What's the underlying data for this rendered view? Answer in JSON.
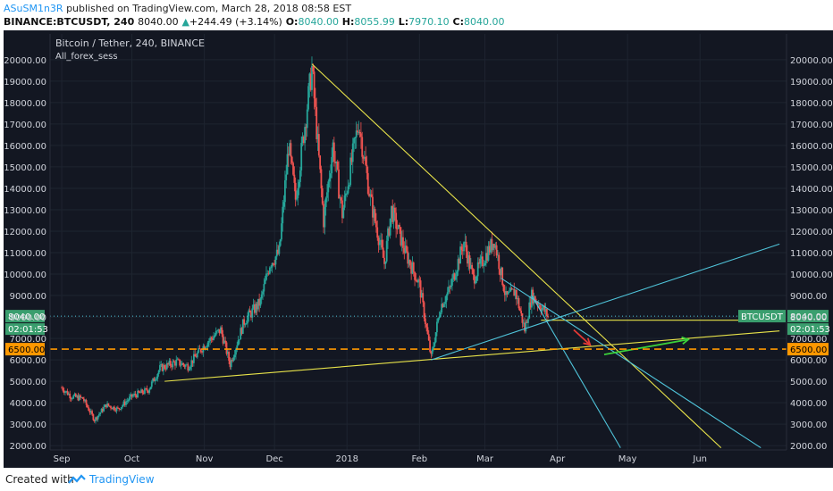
{
  "header": {
    "author": "ASuSM1n3R",
    "published_text": " published on TradingView.com, March 28, 2018 08:58 EST",
    "symbol": "BINANCE:BTCUSDT, 240",
    "last": "8040.00",
    "change_arrow": "▲",
    "change": "+244.49 (+3.14%)",
    "o_label": "O:",
    "o": "8040.00",
    "h_label": "H:",
    "h": "8055.99",
    "l_label": "L:",
    "l": "7970.10",
    "c_label": "C:",
    "c": "8040.00"
  },
  "legend": {
    "title": "Bitcoin / Tether, 240, BINANCE",
    "indicator": "All_forex_sess"
  },
  "chart_data": {
    "type": "candlestick",
    "x_categories": [
      "Sep",
      "Oct",
      "Nov",
      "Dec",
      "2018",
      "Feb",
      "Mar",
      "Apr",
      "May",
      "Jun"
    ],
    "ylim": [
      1800,
      21200
    ],
    "y_ticks": [
      2000,
      3000,
      4000,
      5000,
      6000,
      7000,
      8000,
      9000,
      10000,
      11000,
      12000,
      13000,
      14000,
      15000,
      16000,
      17000,
      18000,
      19000,
      20000
    ],
    "y_tick_labels": [
      "2000.00",
      "3000.00",
      "4000.00",
      "5000.00",
      "6000.00",
      "7000.00",
      "8000.00",
      "9000.00",
      "10000.00",
      "11000.00",
      "12000.00",
      "13000.00",
      "14000.00",
      "15000.00",
      "16000.00",
      "17000.00",
      "18000.00",
      "19000.00",
      "20000.00"
    ],
    "price_path": [
      [
        "2017-09-01",
        4700
      ],
      [
        "2017-09-05",
        4300
      ],
      [
        "2017-09-10",
        4200
      ],
      [
        "2017-09-15",
        3200
      ],
      [
        "2017-09-20",
        3900
      ],
      [
        "2017-09-25",
        3700
      ],
      [
        "2017-10-01",
        4300
      ],
      [
        "2017-10-08",
        4600
      ],
      [
        "2017-10-13",
        5600
      ],
      [
        "2017-10-20",
        5900
      ],
      [
        "2017-10-25",
        5700
      ],
      [
        "2017-11-01",
        6700
      ],
      [
        "2017-11-08",
        7400
      ],
      [
        "2017-11-12",
        5800
      ],
      [
        "2017-11-18",
        7800
      ],
      [
        "2017-11-25",
        8700
      ],
      [
        "2017-11-29",
        10500
      ],
      [
        "2017-12-03",
        11000
      ],
      [
        "2017-12-07",
        16000
      ],
      [
        "2017-12-10",
        13500
      ],
      [
        "2017-12-17",
        19600
      ],
      [
        "2017-12-22",
        12500
      ],
      [
        "2017-12-26",
        16000
      ],
      [
        "2017-12-30",
        12800
      ],
      [
        "2018-01-06",
        17100
      ],
      [
        "2018-01-11",
        13500
      ],
      [
        "2018-01-17",
        10500
      ],
      [
        "2018-01-20",
        13000
      ],
      [
        "2018-01-26",
        11000
      ],
      [
        "2018-02-01",
        9500
      ],
      [
        "2018-02-06",
        6100
      ],
      [
        "2018-02-10",
        8500
      ],
      [
        "2018-02-14",
        9300
      ],
      [
        "2018-02-20",
        11500
      ],
      [
        "2018-02-24",
        9800
      ],
      [
        "2018-03-05",
        11600
      ],
      [
        "2018-03-10",
        8900
      ],
      [
        "2018-03-14",
        9200
      ],
      [
        "2018-03-18",
        7400
      ],
      [
        "2018-03-21",
        9000
      ],
      [
        "2018-03-25",
        8500
      ],
      [
        "2018-03-28",
        8040
      ]
    ],
    "last_price": {
      "value": 8040,
      "label": "8040.00",
      "symbol": "BTCUSDT",
      "countdown": "02:01:53"
    },
    "support_level": {
      "value": 6500,
      "label": "6500.00"
    },
    "drawings": [
      {
        "type": "trendline",
        "color": "#e8e34a",
        "from": [
          "2017-12-17",
          19800
        ],
        "to": [
          "2018-06-10",
          1900
        ]
      },
      {
        "type": "trendline",
        "color": "#e8e34a",
        "from": [
          "2017-10-15",
          5000
        ],
        "to": [
          "2018-07-05",
          7350
        ]
      },
      {
        "type": "trendline",
        "color": "#e8e34a",
        "from": [
          "2018-03-25",
          7850
        ],
        "to": [
          "2018-06-28",
          7850
        ]
      },
      {
        "type": "trendline",
        "color": "#4fc3d9",
        "from": [
          "2018-02-06",
          6000
        ],
        "to": [
          "2018-07-05",
          11400
        ]
      },
      {
        "type": "trendline",
        "color": "#4fc3d9",
        "from": [
          "2018-03-08",
          9800
        ],
        "to": [
          "2018-06-27",
          1900
        ]
      },
      {
        "type": "trendline",
        "color": "#4fc3d9",
        "from": [
          "2018-03-21",
          9000
        ],
        "to": [
          "2018-04-28",
          1900
        ]
      },
      {
        "type": "arrow",
        "color": "#e53935",
        "from": [
          "2018-04-08",
          7400
        ],
        "to": [
          "2018-04-15",
          6700
        ]
      },
      {
        "type": "arrow",
        "color": "#3bd13b",
        "from": [
          "2018-04-21",
          6250
        ],
        "to": [
          "2018-05-27",
          6950
        ]
      }
    ]
  },
  "footer": {
    "created_with": "Created with",
    "brand": "TradingView"
  },
  "colors": {
    "background": "#131722",
    "grid": "#1e2430",
    "up": "#26a69a",
    "down": "#ef5350",
    "yellow": "#e8e34a",
    "cyan": "#4fc3d9",
    "orange": "#ff9800"
  }
}
